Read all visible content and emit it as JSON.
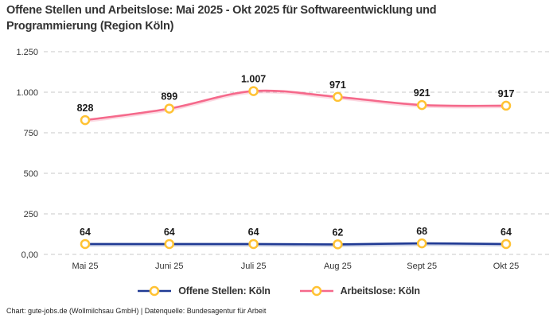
{
  "header": {
    "title_lines": [
      "Offene Stellen und Arbeitslose: Mai 2025 - Okt 2025 für Softwareentwicklung und",
      "Programmierung (Region Köln)"
    ]
  },
  "footer": {
    "credit": "Chart: gute-jobs.de (Wollmilchsau GmbH) | Datenquelle: Bundesagentur für Arbeit"
  },
  "chart_data": {
    "type": "line",
    "title": "Offene Stellen und Arbeitslose: Mai 2025 - Okt 2025 für Softwareentwicklung und Programmierung (Region Köln)",
    "categories": [
      "Mai 25",
      "Juni 25",
      "Juli 25",
      "Aug 25",
      "Sept 25",
      "Okt 25"
    ],
    "series": [
      {
        "name": "Offene Stellen: Köln",
        "color": "#203a94",
        "values": [
          64,
          64,
          64,
          62,
          68,
          64
        ],
        "point_labels": [
          "64",
          "64",
          "64",
          "62",
          "68",
          "64"
        ]
      },
      {
        "name": "Arbeitslose: Köln",
        "color": "#f5698b",
        "values": [
          828,
          899,
          1007,
          971,
          921,
          917
        ],
        "point_labels": [
          "828",
          "899",
          "1.007",
          "971",
          "921",
          "917"
        ]
      }
    ],
    "marker_style": {
      "fill": "#ffffff",
      "stroke": "#ffc233"
    },
    "ylim": [
      0,
      1250
    ],
    "yticks": [
      0,
      250,
      500,
      750,
      1000,
      1250
    ],
    "ytick_labels": [
      "0,00",
      "250",
      "500",
      "750",
      "1.000",
      "1.250"
    ],
    "grid": "horizontal-dashed",
    "grid_color": "#c9c9c9",
    "tick_text_color": "#333333",
    "data_label_color": "#1a1a1a",
    "legend_position": "bottom"
  }
}
